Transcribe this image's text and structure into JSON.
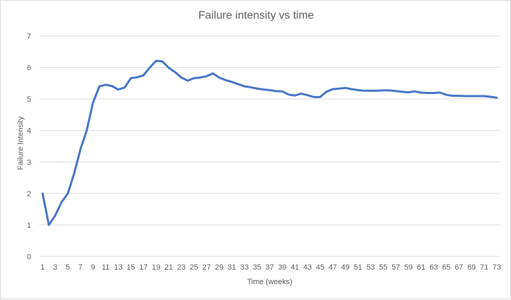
{
  "chart_data": {
    "type": "line",
    "title": "Failure intensity vs time",
    "xlabel": "Time (weeks)",
    "ylabel": "Failure Intensity",
    "ylim": [
      0,
      7
    ],
    "yticks": [
      0,
      1,
      2,
      3,
      4,
      5,
      6,
      7
    ],
    "xticks": [
      1,
      3,
      5,
      7,
      9,
      11,
      13,
      15,
      17,
      19,
      21,
      23,
      25,
      27,
      29,
      31,
      33,
      35,
      37,
      39,
      41,
      43,
      45,
      47,
      49,
      51,
      53,
      55,
      57,
      59,
      61,
      63,
      65,
      67,
      69,
      71,
      73
    ],
    "grid": true,
    "legend": "none",
    "line_color": "#4472c4",
    "x": [
      1,
      2,
      3,
      4,
      5,
      6,
      7,
      8,
      9,
      10,
      11,
      12,
      13,
      14,
      15,
      16,
      17,
      18,
      19,
      20,
      21,
      22,
      23,
      24,
      25,
      26,
      27,
      28,
      29,
      30,
      31,
      32,
      33,
      34,
      35,
      36,
      37,
      38,
      39,
      40,
      41,
      42,
      43,
      44,
      45,
      46,
      47,
      48,
      49,
      50,
      51,
      52,
      53,
      54,
      55,
      56,
      57,
      58,
      59,
      60,
      61,
      62,
      63,
      64,
      65,
      66,
      67,
      68,
      69,
      70,
      71,
      72,
      73
    ],
    "series": [
      {
        "values": [
          2.0,
          1.0,
          1.3,
          1.72,
          2.0,
          2.63,
          3.4,
          4.0,
          4.88,
          5.4,
          5.45,
          5.41,
          5.3,
          5.36,
          5.66,
          5.69,
          5.75,
          6.0,
          6.21,
          6.19,
          5.99,
          5.85,
          5.68,
          5.58,
          5.66,
          5.68,
          5.72,
          5.81,
          5.68,
          5.6,
          5.54,
          5.47,
          5.4,
          5.37,
          5.33,
          5.3,
          5.28,
          5.25,
          5.24,
          5.14,
          5.11,
          5.17,
          5.12,
          5.06,
          5.06,
          5.23,
          5.31,
          5.33,
          5.35,
          5.31,
          5.28,
          5.26,
          5.26,
          5.26,
          5.27,
          5.27,
          5.25,
          5.23,
          5.21,
          5.24,
          5.2,
          5.19,
          5.19,
          5.2,
          5.13,
          5.1,
          5.1,
          5.09,
          5.09,
          5.09,
          5.09,
          5.07,
          5.04
        ]
      }
    ]
  }
}
